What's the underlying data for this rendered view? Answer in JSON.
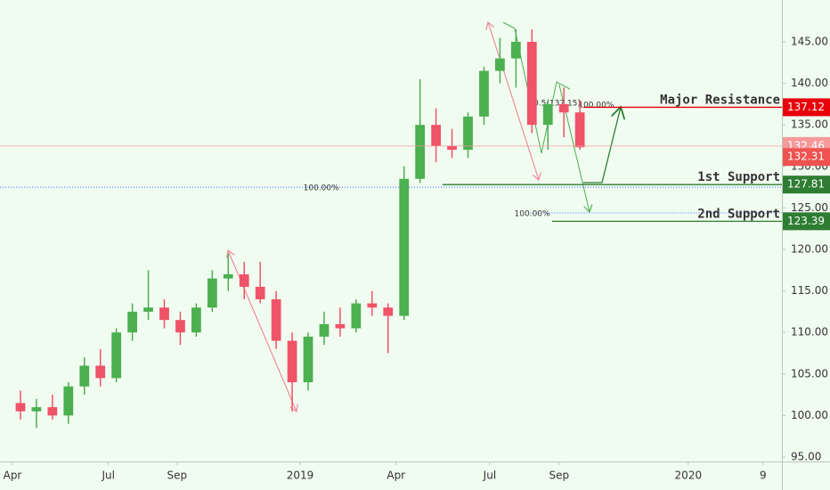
{
  "chart_data": {
    "type": "candlestick",
    "x": [
      0.25,
      0.75,
      1.25,
      1.75,
      2.25,
      2.75,
      3.25,
      3.75,
      4.25,
      4.75,
      5.25,
      5.75,
      6.25,
      6.75,
      7.25,
      7.75,
      8.25,
      8.75,
      9.25,
      9.75,
      10.25,
      10.75,
      11.25,
      11.75,
      12.25,
      12.75,
      13.25,
      13.75,
      14.25,
      14.75,
      15.25,
      15.75,
      16.25,
      16.75,
      17.25,
      17.75
    ],
    "open": [
      101.5,
      100.5,
      101,
      100,
      103.5,
      106,
      104.5,
      110,
      112.5,
      113,
      111.5,
      110,
      113,
      116.5,
      117,
      115.5,
      114,
      109,
      104,
      109.5,
      111,
      110.5,
      113.5,
      113,
      112,
      128.5,
      135,
      132.5,
      132,
      136,
      141.5,
      143,
      145,
      135,
      137.5,
      136.5
    ],
    "high": [
      103,
      102,
      102.5,
      104,
      107,
      108,
      110.5,
      113.5,
      117.5,
      114,
      112.5,
      113.5,
      117.5,
      119.5,
      118.5,
      118.5,
      115,
      110,
      110,
      112.5,
      113,
      114,
      115,
      113.5,
      130,
      140.5,
      137,
      134.5,
      136.5,
      142,
      145.5,
      146.5,
      146.5,
      138,
      139.5,
      138
    ],
    "low": [
      99.5,
      98.5,
      99.5,
      99,
      102.5,
      103.5,
      104,
      109,
      111.5,
      110.5,
      108.5,
      109.5,
      112.5,
      115,
      114,
      113.5,
      108,
      100.5,
      103,
      108.5,
      109.5,
      110,
      112,
      107.5,
      111.5,
      128,
      130.5,
      131,
      131,
      135,
      140,
      139.5,
      134,
      132,
      133.5,
      132
    ],
    "close": [
      100.5,
      101,
      100,
      103.5,
      106,
      104.5,
      110,
      112.5,
      113,
      111.5,
      110,
      113,
      116.5,
      117,
      115.5,
      114,
      109,
      104,
      109.5,
      111,
      110.5,
      113.5,
      113,
      112,
      128.5,
      135,
      132.5,
      132,
      136,
      141.5,
      143,
      145,
      135,
      137.5,
      136.5,
      132.31
    ],
    "up_color": "#4caf50",
    "down_color": "#ef5367",
    "xlim": [
      -0.39,
      24.07
    ],
    "ylim": [
      94.46,
      150.04
    ],
    "xticks": [
      {
        "value": 0,
        "label": "Apr"
      },
      {
        "value": 3,
        "label": "Jul"
      },
      {
        "value": 5.15,
        "label": "Sep"
      },
      {
        "value": 9,
        "label": "2019"
      },
      {
        "value": 12,
        "label": "Apr"
      },
      {
        "value": 14.93,
        "label": "Jul"
      },
      {
        "value": 17.1,
        "label": "Sep"
      },
      {
        "value": 21.14,
        "label": "2020"
      },
      {
        "value": 23.48,
        "label": "9"
      }
    ],
    "yticks": [
      {
        "value": 95,
        "label": "95.00"
      },
      {
        "value": 100,
        "label": "100.00"
      },
      {
        "value": 105,
        "label": "105.00"
      },
      {
        "value": 110,
        "label": "110.00"
      },
      {
        "value": 115,
        "label": "115.00"
      },
      {
        "value": 120,
        "label": "120.00"
      },
      {
        "value": 125,
        "label": "125.00"
      },
      {
        "value": 130,
        "label": "130.00"
      },
      {
        "value": 135,
        "label": "135.00"
      },
      {
        "value": 140,
        "label": "140.00"
      },
      {
        "value": 145,
        "label": "145.00"
      }
    ],
    "levels": [
      {
        "name": "Major Resistance",
        "value": 137.12,
        "from": 17.86,
        "color": "#e8000b",
        "badge": "#e8000b"
      },
      {
        "name": "1st Support",
        "value": 127.81,
        "from": 13.45,
        "color": "#2e7d32",
        "badge": "#2e7d32"
      },
      {
        "name": "2nd Support",
        "value": 123.39,
        "from": 16.88,
        "color": "#2e7d32",
        "badge": "#2e7d32"
      }
    ],
    "price_lines": [
      {
        "value": 132.46,
        "color": "#f59a9a"
      },
      {
        "value": 132.31,
        "color": "#ef5350"
      }
    ],
    "fib_lines": [
      {
        "label": "100.00%",
        "value": 127.5,
        "from": -0.39,
        "label_x": 9.1,
        "color": "#2962ff"
      },
      {
        "label": "100.00%",
        "value": 124.4,
        "from": 16.2,
        "label_x": 15.7,
        "color": "#2962ff"
      }
    ],
    "fib_texts": [
      {
        "text": "0.5(137.15)",
        "x": 16.3,
        "y": 137.6,
        "color": "#e8000b"
      },
      {
        "text": "100.00%",
        "x": 17.7,
        "y": 137.4,
        "color": "#2962ff"
      }
    ]
  }
}
